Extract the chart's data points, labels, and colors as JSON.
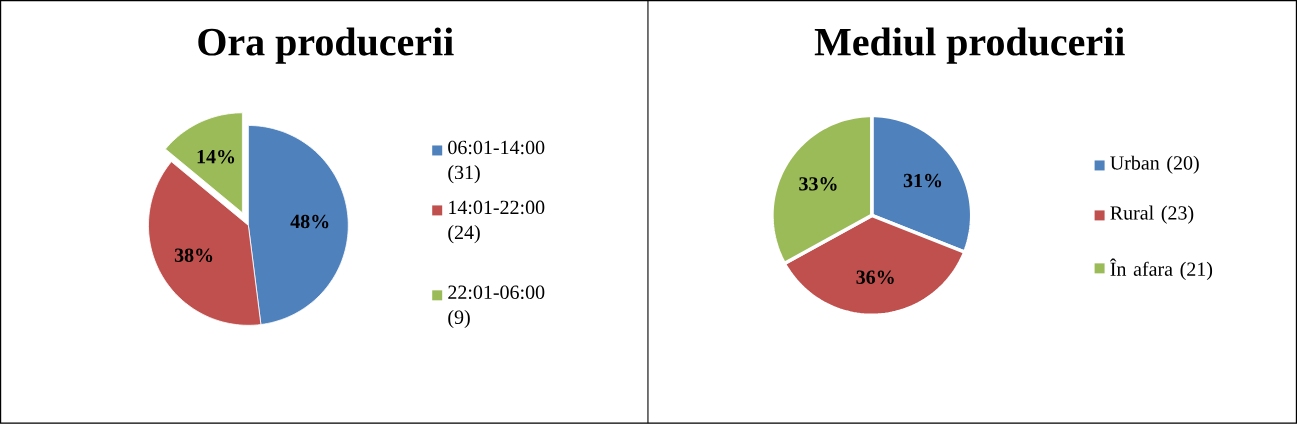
{
  "chart_data": [
    {
      "type": "pie",
      "title": "Ora producerii",
      "categories": [
        "06:01-14:00 (31)",
        "14:01-22:00 (24)",
        "22:01-06:00 (9)"
      ],
      "values": [
        48,
        38,
        14
      ],
      "colors": [
        "#4f81bd",
        "#c0504d",
        "#9bbb59"
      ],
      "value_labels": [
        "48%",
        "38%",
        "14%"
      ],
      "legend": "right"
    },
    {
      "type": "pie",
      "title": "Mediul producerii",
      "categories": [
        "Urban (20)",
        "Rural (23)",
        "În afara (21)"
      ],
      "values": [
        31,
        36,
        33
      ],
      "colors": [
        "#4f81bd",
        "#c0504d",
        "#9bbb59"
      ],
      "value_labels": [
        "31%",
        "36%",
        "33%"
      ],
      "legend": "right"
    }
  ]
}
